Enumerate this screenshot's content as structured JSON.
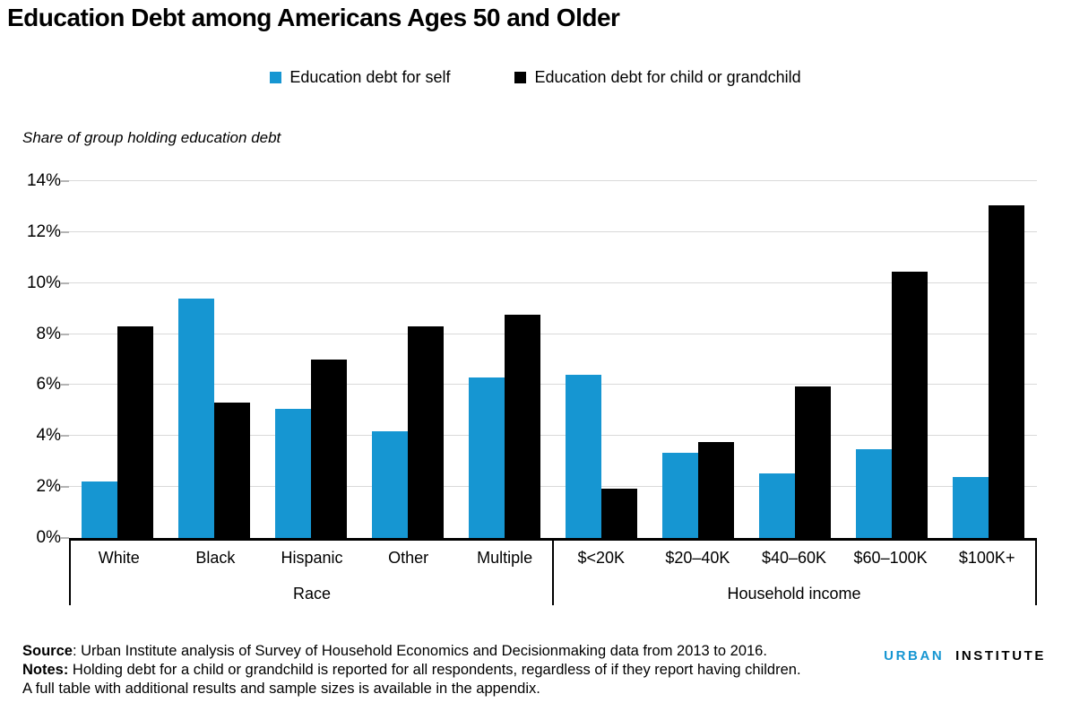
{
  "title": "Education Debt among Americans Ages 50 and Older",
  "subtitle": "Share of group holding education debt",
  "legend": [
    {
      "label": "Education debt for self",
      "color": "#1696d2"
    },
    {
      "label": "Education debt for child or grandchild",
      "color": "#000000"
    }
  ],
  "chart_data": {
    "type": "bar",
    "title": "Education Debt among Americans Ages 50 and Older",
    "ylabel": "Share of group holding education debt",
    "xlabel": "",
    "ylim": [
      0,
      14
    ],
    "ytick_step": 2,
    "ytick_suffix": "%",
    "grid": true,
    "legend_position": "top",
    "series_colors": [
      "#1696d2",
      "#000000"
    ],
    "series_keys": [
      "self",
      "child"
    ],
    "groups": [
      {
        "label": "Race",
        "categories": [
          "White",
          "Black",
          "Hispanic",
          "Other",
          "Multiple"
        ],
        "series": [
          {
            "name": "Education debt for self",
            "values": [
              2.2,
              9.4,
              5.05,
              4.2,
              6.3
            ]
          },
          {
            "name": "Education debt for child or grandchild",
            "values": [
              8.3,
              5.3,
              7.0,
              8.3,
              8.75
            ]
          }
        ]
      },
      {
        "label": "Household income",
        "categories": [
          "$<20K",
          "$20–40K",
          "$40–60K",
          "$60–100K",
          "$100K+"
        ],
        "series": [
          {
            "name": "Education debt for self",
            "values": [
              6.4,
              3.35,
              2.55,
              3.5,
              2.4
            ]
          },
          {
            "name": "Education debt for child or grandchild",
            "values": [
              1.95,
              3.75,
              5.95,
              10.45,
              13.05
            ]
          }
        ]
      }
    ]
  },
  "footer": {
    "source_label": "Source",
    "source_text": ": Urban Institute analysis of Survey of Household Economics and Decisionmaking data from 2013 to 2016.",
    "notes_label": "Notes:",
    "notes_text": " Holding debt for a child or grandchild is reported for all respondents, regardless of if they report having children.",
    "appendix_text": "A full table with additional results and sample sizes is available in the appendix.",
    "logo": {
      "urban": "URBAN",
      "institute": "INSTITUTE"
    }
  }
}
